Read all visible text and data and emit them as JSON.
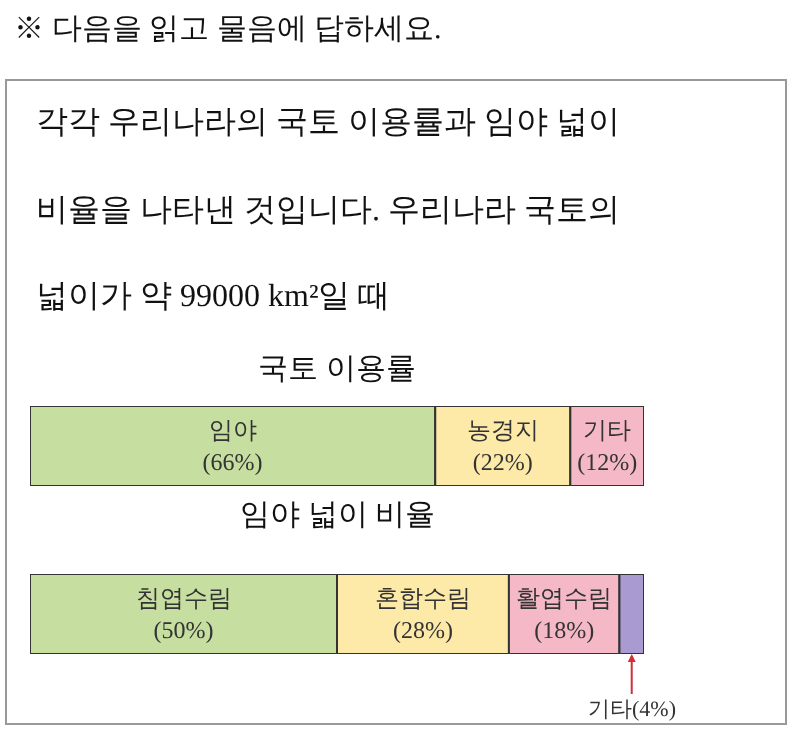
{
  "chart_data": [
    {
      "type": "other",
      "annotations": [
        "※ 다음을 읽고 물음에 답하세요.",
        "각각 우리나라의 국토 이용률과 임야 넓이 비율을 나타낸 것입니다. 우리나라 국토의 넓이가 약 99000 km²일 때"
      ]
    },
    {
      "type": "bar",
      "orientation": "horizontal",
      "stacked": true,
      "title": "국토 이용률",
      "categories": [
        null
      ],
      "tick_labels": false,
      "series": [
        {
          "name": "임야",
          "color": "#c6de9f",
          "values": [
            66
          ],
          "value_labels": [
            "(66%)"
          ]
        },
        {
          "name": "농경지",
          "color": "#fde9a8",
          "values": [
            22
          ],
          "value_labels": [
            "(22%)"
          ]
        },
        {
          "name": "기타",
          "color": "#f4b8c6",
          "values": [
            12
          ],
          "value_labels": [
            "(12%)"
          ]
        }
      ]
    },
    {
      "type": "bar",
      "orientation": "horizontal",
      "stacked": true,
      "title": "임야 넓이 비율",
      "categories": [
        null
      ],
      "tick_labels": false,
      "series": [
        {
          "name": "침엽수림",
          "color": "#c6de9f",
          "values": [
            50
          ],
          "value_labels": [
            "(50%)"
          ]
        },
        {
          "name": "혼합수림",
          "color": "#fde9a8",
          "values": [
            28
          ],
          "value_labels": [
            "(28%)"
          ]
        },
        {
          "name": "활엽수림",
          "color": "#f4b8c6",
          "values": [
            18
          ],
          "value_labels": [
            "(18%)"
          ]
        },
        {
          "name": "기타",
          "color": "#a99ad2",
          "values": [
            4
          ],
          "value_labels": [
            "(4%)"
          ]
        }
      ]
    }
  ]
}
